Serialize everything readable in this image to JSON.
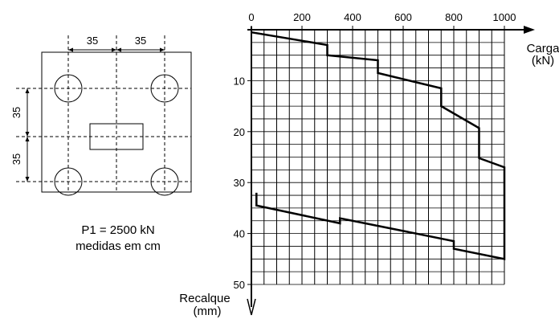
{
  "plan": {
    "dim_top_left": "35",
    "dim_top_right": "35",
    "dim_side_upper": "35",
    "dim_side_lower": "35",
    "caption_line1": "P1 = 2500 kN",
    "caption_line2": "medidas em cm"
  },
  "chart_data": {
    "type": "line",
    "title": "",
    "xlabel": "Carga\n(kN)",
    "ylabel": "Recalque\n(mm)",
    "xlabel_lines": [
      "Carga",
      "(kN)"
    ],
    "ylabel_lines": [
      "Recalque",
      "(mm)"
    ],
    "xlim": [
      0,
      1000
    ],
    "ylim": [
      0,
      50
    ],
    "y_inverted": true,
    "x_axis_position": "top",
    "x_ticks": [
      0,
      200,
      400,
      600,
      800,
      1000
    ],
    "x_tick_labels": [
      "0",
      "200",
      "400",
      "600",
      "800",
      "1000"
    ],
    "y_ticks": [
      10,
      20,
      30,
      40,
      50
    ],
    "y_tick_labels": [
      "10",
      "20",
      "30",
      "40",
      "50"
    ],
    "grid": true,
    "series": [
      {
        "color": "#000000",
        "x": [
          0,
          300,
          300,
          500,
          500,
          750,
          750,
          900,
          900,
          1000,
          1000,
          800,
          800,
          350,
          350,
          20,
          20
        ],
        "y": [
          0.5,
          3.0,
          5.0,
          6.0,
          8.5,
          11.5,
          15.0,
          19.3,
          25.2,
          27.0,
          45.0,
          43.0,
          41.5,
          37.0,
          38.0,
          34.5,
          32.0
        ]
      }
    ]
  }
}
